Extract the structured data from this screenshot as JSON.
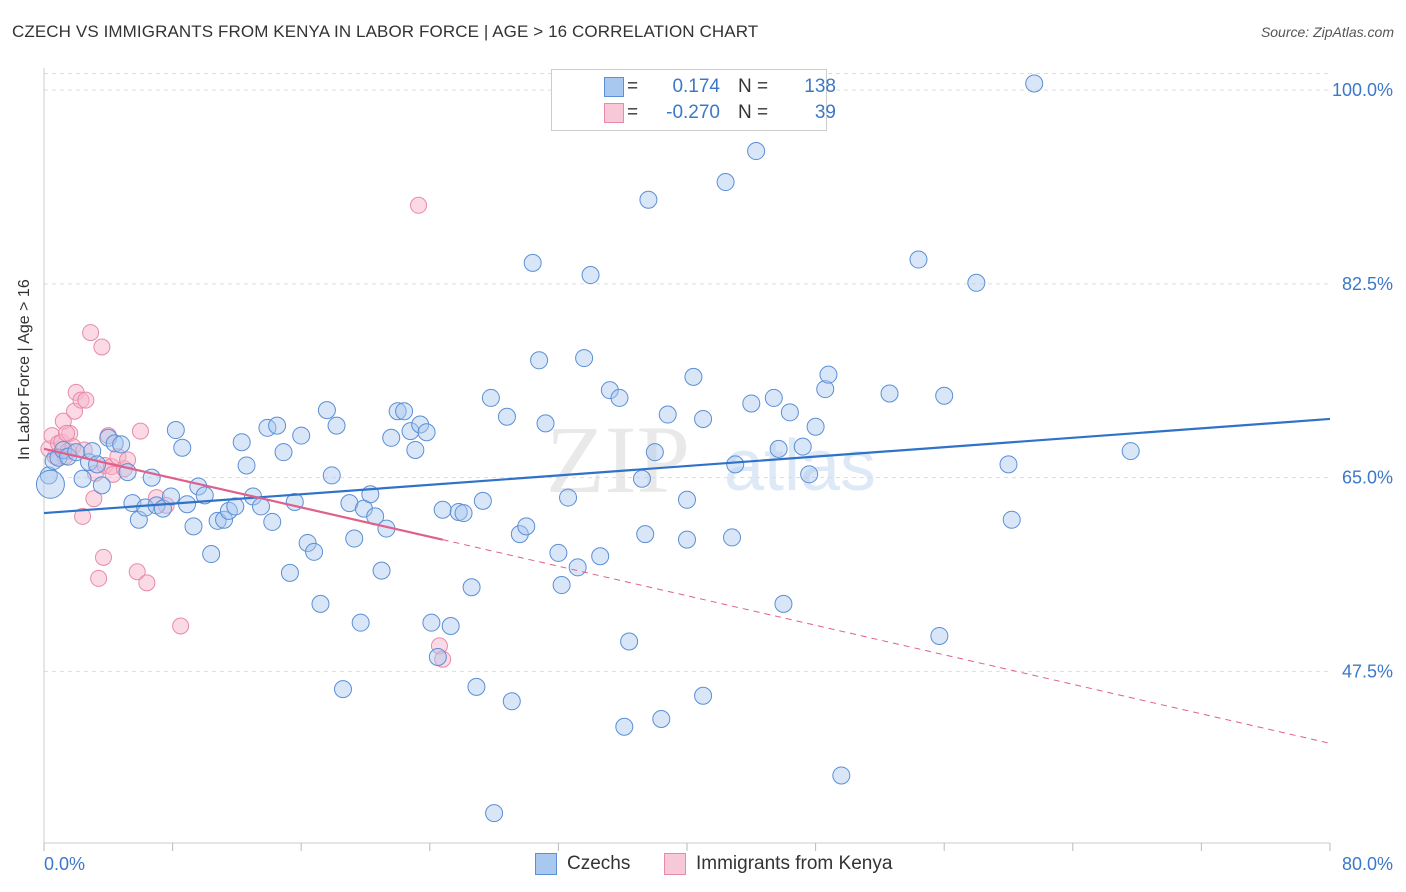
{
  "title": "CZECH VS IMMIGRANTS FROM KENYA IN LABOR FORCE | AGE > 16 CORRELATION CHART",
  "source": "Source: ZipAtlas.com",
  "watermark": {
    "zip": "ZIP",
    "atlas": "atlas"
  },
  "legend": {
    "rows": [
      {
        "r_label": "R =",
        "r_value": "0.174",
        "n_label": "N =",
        "n_value": "138"
      },
      {
        "r_label": "R =",
        "r_value": "-0.270",
        "n_label": "N =",
        "n_value": "39"
      }
    ]
  },
  "colors": {
    "czechs_fill": "#a9c8f0",
    "czechs_stroke": "#5b8fd6",
    "czechs_line": "#2f72c8",
    "kenya_fill": "#f7b6cb",
    "kenya_stroke": "#e88aa8",
    "kenya_line": "#e0608c",
    "grid": "#dddddd",
    "tick_label": "#3c78c8"
  },
  "chart_data": {
    "type": "scatter",
    "title": "CZECH VS IMMIGRANTS FROM KENYA IN LABOR FORCE | AGE > 16 CORRELATION CHART",
    "xlabel": "",
    "ylabel": "In Labor Force | Age > 16",
    "xlim": [
      0,
      80
    ],
    "ylim": [
      32,
      102
    ],
    "x_tick_labels": [
      "0.0%",
      "80.0%"
    ],
    "y_ticks": [
      47.5,
      65.0,
      82.5,
      100.0
    ],
    "y_tick_labels": [
      "47.5%",
      "65.0%",
      "82.5%",
      "100.0%"
    ],
    "grid": true,
    "legend_position": "bottom",
    "series": [
      {
        "name": "Czechs",
        "r": 0.174,
        "n": 138,
        "trend": {
          "x": [
            0,
            80
          ],
          "y": [
            61.8,
            70.3
          ]
        },
        "points": [
          [
            0.3,
            65.2
          ],
          [
            0.6,
            66.5
          ],
          [
            0.9,
            66.8
          ],
          [
            1.2,
            67.5
          ],
          [
            1.5,
            66.9
          ],
          [
            2.0,
            67.3
          ],
          [
            2.4,
            64.9
          ],
          [
            2.8,
            66.4
          ],
          [
            3.0,
            67.4
          ],
          [
            3.3,
            66.2
          ],
          [
            3.6,
            64.3
          ],
          [
            4.0,
            68.6
          ],
          [
            4.4,
            68.1
          ],
          [
            4.8,
            68.0
          ],
          [
            5.2,
            65.5
          ],
          [
            5.5,
            62.7
          ],
          [
            5.9,
            61.2
          ],
          [
            6.3,
            62.3
          ],
          [
            6.7,
            65.0
          ],
          [
            7.0,
            62.5
          ],
          [
            7.4,
            62.2
          ],
          [
            7.9,
            63.3
          ],
          [
            8.2,
            69.3
          ],
          [
            8.6,
            67.7
          ],
          [
            8.9,
            62.6
          ],
          [
            9.3,
            60.6
          ],
          [
            9.6,
            64.2
          ],
          [
            10.0,
            63.4
          ],
          [
            10.4,
            58.1
          ],
          [
            10.8,
            61.1
          ],
          [
            11.2,
            61.2
          ],
          [
            11.5,
            62.0
          ],
          [
            11.9,
            62.4
          ],
          [
            12.3,
            68.2
          ],
          [
            12.6,
            66.1
          ],
          [
            13.0,
            63.3
          ],
          [
            13.5,
            62.4
          ],
          [
            13.9,
            69.5
          ],
          [
            14.2,
            61.0
          ],
          [
            14.5,
            69.7
          ],
          [
            14.9,
            67.3
          ],
          [
            15.3,
            56.4
          ],
          [
            15.6,
            62.8
          ],
          [
            16.0,
            68.8
          ],
          [
            16.4,
            59.1
          ],
          [
            16.8,
            58.3
          ],
          [
            17.2,
            53.6
          ],
          [
            17.6,
            71.1
          ],
          [
            17.9,
            65.2
          ],
          [
            18.2,
            69.7
          ],
          [
            18.6,
            45.9
          ],
          [
            19.0,
            62.7
          ],
          [
            19.3,
            59.5
          ],
          [
            19.7,
            51.9
          ],
          [
            19.9,
            62.2
          ],
          [
            20.3,
            63.5
          ],
          [
            20.6,
            61.5
          ],
          [
            21.0,
            56.6
          ],
          [
            21.3,
            60.4
          ],
          [
            21.6,
            68.6
          ],
          [
            22.0,
            71.0
          ],
          [
            22.4,
            71.0
          ],
          [
            22.8,
            69.2
          ],
          [
            23.1,
            67.5
          ],
          [
            23.4,
            69.8
          ],
          [
            23.8,
            69.1
          ],
          [
            24.1,
            51.9
          ],
          [
            24.5,
            48.8
          ],
          [
            24.8,
            62.1
          ],
          [
            25.3,
            51.6
          ],
          [
            25.8,
            61.9
          ],
          [
            26.1,
            61.8
          ],
          [
            26.6,
            55.1
          ],
          [
            26.9,
            46.1
          ],
          [
            27.3,
            62.9
          ],
          [
            27.8,
            72.2
          ],
          [
            28.0,
            34.7
          ],
          [
            28.8,
            70.5
          ],
          [
            29.1,
            44.8
          ],
          [
            29.6,
            59.9
          ],
          [
            30.0,
            60.6
          ],
          [
            30.4,
            84.4
          ],
          [
            30.8,
            75.6
          ],
          [
            31.2,
            69.9
          ],
          [
            32.0,
            58.2
          ],
          [
            32.2,
            55.3
          ],
          [
            32.6,
            63.2
          ],
          [
            33.2,
            56.9
          ],
          [
            33.6,
            75.8
          ],
          [
            34.0,
            83.3
          ],
          [
            34.6,
            57.9
          ],
          [
            35.2,
            72.9
          ],
          [
            35.8,
            72.2
          ],
          [
            37.4,
            59.9
          ],
          [
            36.4,
            50.2
          ],
          [
            36.1,
            42.5
          ],
          [
            37.2,
            64.9
          ],
          [
            37.6,
            90.1
          ],
          [
            38.0,
            67.3
          ],
          [
            38.8,
            70.7
          ],
          [
            38.4,
            43.2
          ],
          [
            40.0,
            59.4
          ],
          [
            40.0,
            63.0
          ],
          [
            40.4,
            74.1
          ],
          [
            41.0,
            45.3
          ],
          [
            41.0,
            70.3
          ],
          [
            42.4,
            91.7
          ],
          [
            42.8,
            59.6
          ],
          [
            43.0,
            66.2
          ],
          [
            44.0,
            71.7
          ],
          [
            44.3,
            94.5
          ],
          [
            45.4,
            72.2
          ],
          [
            46.0,
            53.6
          ],
          [
            45.7,
            67.6
          ],
          [
            46.4,
            70.9
          ],
          [
            47.2,
            67.8
          ],
          [
            47.6,
            65.3
          ],
          [
            48.0,
            69.6
          ],
          [
            48.6,
            73.0
          ],
          [
            48.8,
            74.3
          ],
          [
            49.6,
            38.1
          ],
          [
            52.6,
            72.6
          ],
          [
            54.4,
            84.7
          ],
          [
            55.7,
            50.7
          ],
          [
            56.0,
            72.4
          ],
          [
            58.0,
            82.6
          ],
          [
            60.0,
            66.2
          ],
          [
            60.2,
            61.2
          ],
          [
            61.6,
            100.6
          ],
          [
            67.6,
            67.4
          ],
          [
            0.4,
            64.4
          ]
        ]
      },
      {
        "name": "Immigrants from Kenya",
        "r": -0.27,
        "n": 39,
        "trend": {
          "x": [
            0,
            24.8
          ],
          "y": [
            67.6,
            59.4
          ],
          "dashed_extension": {
            "x": [
              24.8,
              80
            ],
            "y": [
              59.4,
              41.0
            ]
          }
        },
        "points": [
          [
            0.3,
            67.6
          ],
          [
            0.5,
            68.8
          ],
          [
            0.7,
            66.9
          ],
          [
            0.9,
            68.1
          ],
          [
            1.1,
            68.2
          ],
          [
            1.3,
            66.9
          ],
          [
            1.5,
            67.4
          ],
          [
            1.6,
            69.0
          ],
          [
            1.8,
            67.8
          ],
          [
            1.2,
            70.1
          ],
          [
            1.4,
            69.0
          ],
          [
            1.9,
            71.0
          ],
          [
            2.0,
            72.7
          ],
          [
            2.3,
            72.0
          ],
          [
            2.5,
            67.5
          ],
          [
            2.6,
            72.0
          ],
          [
            2.4,
            61.5
          ],
          [
            2.9,
            78.1
          ],
          [
            3.1,
            63.1
          ],
          [
            3.2,
            65.4
          ],
          [
            3.4,
            55.9
          ],
          [
            3.6,
            76.8
          ],
          [
            3.7,
            57.8
          ],
          [
            3.8,
            66.1
          ],
          [
            4.0,
            68.8
          ],
          [
            4.2,
            66.0
          ],
          [
            4.3,
            65.3
          ],
          [
            4.6,
            66.9
          ],
          [
            5.0,
            65.8
          ],
          [
            5.2,
            66.6
          ],
          [
            5.8,
            56.5
          ],
          [
            6.0,
            69.2
          ],
          [
            6.4,
            55.5
          ],
          [
            7.0,
            63.2
          ],
          [
            7.6,
            62.5
          ],
          [
            8.5,
            51.6
          ],
          [
            23.3,
            89.6
          ],
          [
            24.6,
            49.8
          ],
          [
            24.8,
            48.6
          ]
        ]
      }
    ]
  }
}
